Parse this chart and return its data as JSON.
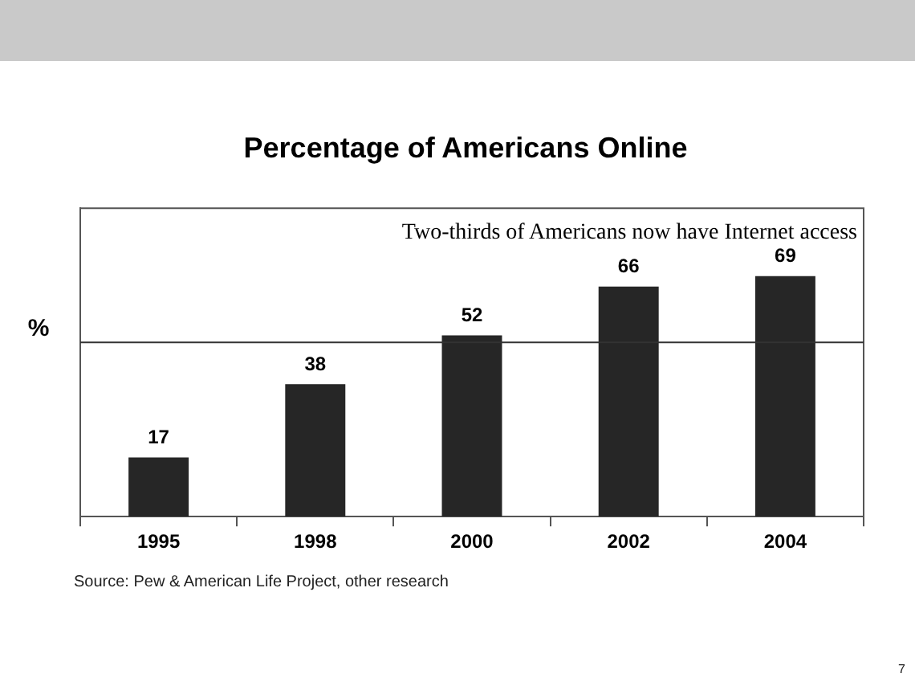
{
  "chart_data": {
    "type": "bar",
    "title": "Percentage of Americans Online",
    "ylabel": "%",
    "categories": [
      "1995",
      "1998",
      "2000",
      "2002",
      "2004"
    ],
    "values": [
      17,
      38,
      52,
      66,
      69
    ],
    "color": "#262626",
    "data_labels": true,
    "grid": false,
    "legend": false,
    "ref_lines": [
      {
        "axis": "y",
        "value": 50,
        "color": "#333333"
      }
    ],
    "annotations": [
      "Two-thirds of Americans now have Internet access",
      "Source:  Pew & American Life Project, other research",
      "7"
    ]
  }
}
